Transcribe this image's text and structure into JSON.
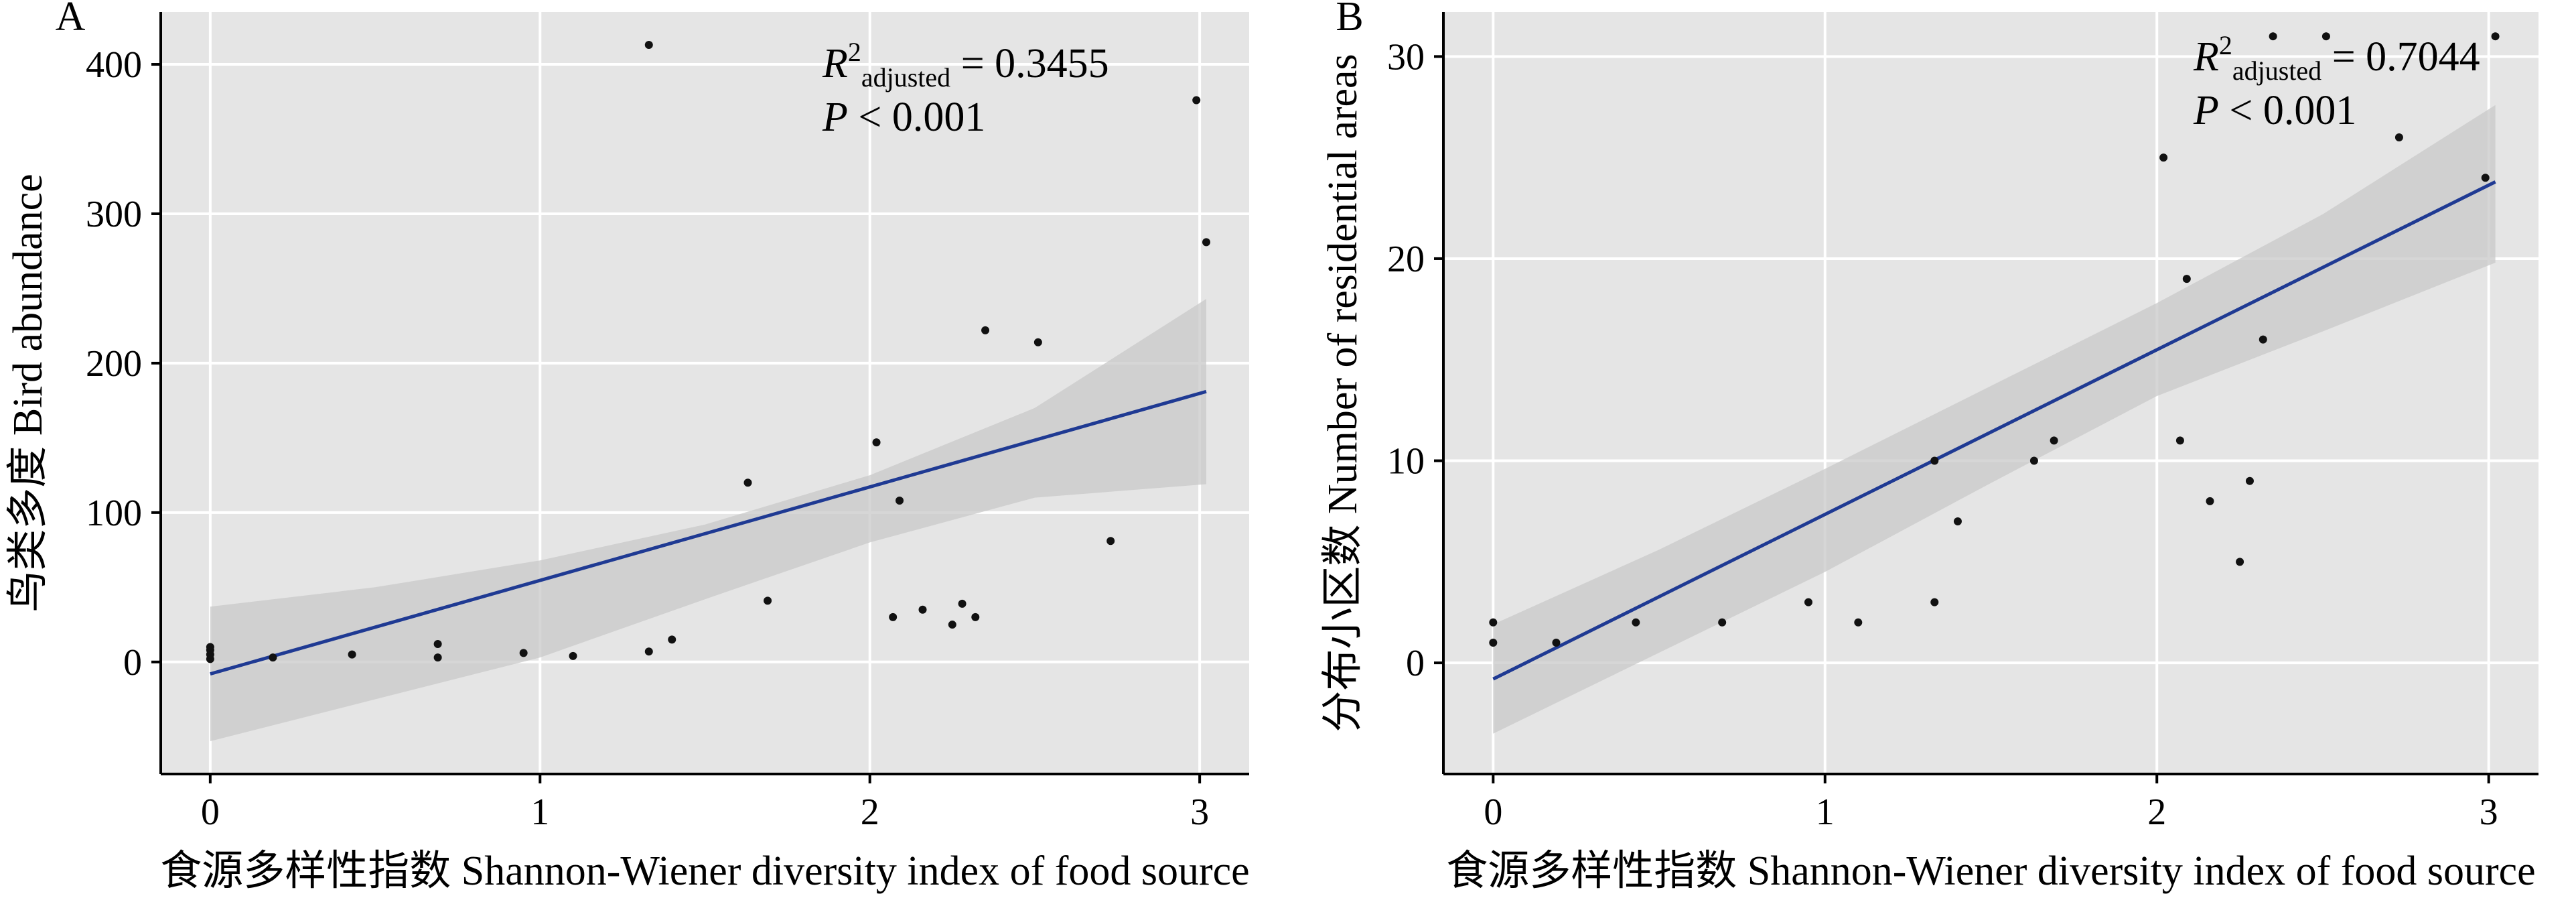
{
  "figure": {
    "panels": [
      {
        "label": "A"
      },
      {
        "label": "B"
      }
    ]
  },
  "chart_data": [
    {
      "type": "scatter",
      "panel": "A",
      "xlabel": "食源多样性指数 Shannon-Wiener diversity index of food source",
      "ylabel": "鸟类多度 Bird abundance",
      "xlim": [
        -0.15,
        3.15
      ],
      "ylim": [
        -75,
        435
      ],
      "xticks": [
        0,
        1,
        2,
        3
      ],
      "yticks": [
        0,
        100,
        200,
        300,
        400
      ],
      "grid": true,
      "annotation": {
        "r2_prefix": "R",
        "r2_sup": "2",
        "r2_sub": "adjusted",
        "r2_value": "= 0.3455",
        "p_italic": "P",
        "p_rest": " < 0.001"
      },
      "points": {
        "x": [
          0,
          0,
          0,
          0,
          0.19,
          0.43,
          0.69,
          0.69,
          0.95,
          1.1,
          1.33,
          1.33,
          1.4,
          1.63,
          1.69,
          2.02,
          2.07,
          2.09,
          2.16,
          2.25,
          2.28,
          2.32,
          2.35,
          2.51,
          2.73,
          2.99,
          3.02
        ],
        "y": [
          2,
          5,
          8,
          10,
          3,
          5,
          3,
          12,
          6,
          4,
          413,
          7,
          15,
          120,
          41,
          147,
          30,
          108,
          35,
          25,
          39,
          30,
          222,
          214,
          81,
          376,
          281
        ]
      },
      "fit": {
        "x": [
          0,
          3.02
        ],
        "y": [
          -8,
          181
        ]
      },
      "ci": {
        "x": [
          0,
          0.5,
          1.0,
          1.5,
          2.0,
          2.5,
          3.02
        ],
        "upper": [
          37,
          50,
          68,
          92,
          125,
          170,
          243
        ],
        "lower": [
          -53,
          -25,
          3,
          42,
          80,
          110,
          119
        ]
      }
    },
    {
      "type": "scatter",
      "panel": "B",
      "xlabel": "食源多样性指数 Shannon-Wiener diversity index of food source",
      "ylabel": "分布小区数 Number of residential areas",
      "xlim": [
        -0.15,
        3.15
      ],
      "ylim": [
        -5.5,
        32.2
      ],
      "xticks": [
        0,
        1,
        2,
        3
      ],
      "yticks": [
        0,
        10,
        20,
        30
      ],
      "grid": true,
      "annotation": {
        "r2_prefix": "R",
        "r2_sup": "2",
        "r2_sub": "adjusted",
        "r2_value": "= 0.7044",
        "p_italic": "P",
        "p_rest": " < 0.001"
      },
      "points": {
        "x": [
          0,
          0,
          0.19,
          0.43,
          0.69,
          0.95,
          1.1,
          1.33,
          1.33,
          1.4,
          1.63,
          1.69,
          2.02,
          2.07,
          2.09,
          2.16,
          2.25,
          2.28,
          2.32,
          2.35,
          2.51,
          2.73,
          2.99,
          3.02
        ],
        "y": [
          1,
          2,
          1,
          2,
          2,
          3,
          2,
          10,
          3,
          7,
          10,
          11,
          25,
          11,
          19,
          8,
          5,
          9,
          16,
          31,
          31,
          26,
          24,
          31
        ]
      },
      "fit": {
        "x": [
          0,
          3.02
        ],
        "y": [
          -0.8,
          23.8
        ]
      },
      "ci": {
        "x": [
          0,
          0.5,
          1.0,
          1.5,
          2.0,
          2.5,
          3.02
        ],
        "upper": [
          1.9,
          5.6,
          9.6,
          13.7,
          17.8,
          22.2,
          27.6
        ],
        "lower": [
          -3.5,
          0.5,
          4.5,
          8.9,
          13.2,
          16.4,
          19.8
        ]
      }
    }
  ]
}
